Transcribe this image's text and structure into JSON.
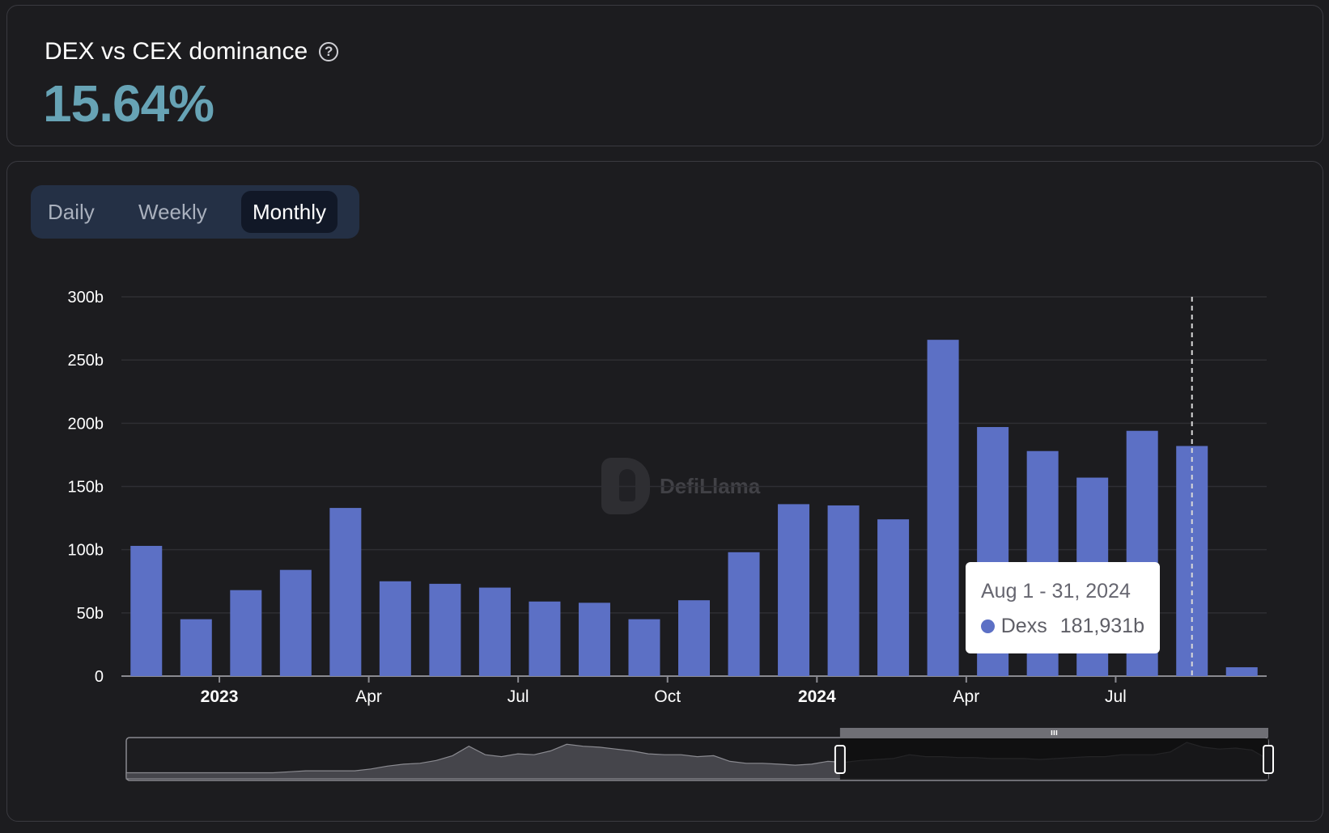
{
  "header": {
    "title": "DEX vs CEX dominance",
    "help_icon": "question-circle-icon",
    "value": "15.64%",
    "value_color": "#67a3b5"
  },
  "tabs": [
    {
      "label": "Daily",
      "active": false
    },
    {
      "label": "Weekly",
      "active": false
    },
    {
      "label": "Monthly",
      "active": true
    }
  ],
  "watermark": {
    "text": "DefiLlama",
    "icon": "defillama-logo-icon"
  },
  "tooltip": {
    "date": "Aug 1 - 31, 2024",
    "series_name": "Dexs",
    "value": "181,931b"
  },
  "colors": {
    "bar": "#5c70c5",
    "background": "#1c1c1f",
    "grid": "#2e2e33",
    "axis_text": "#ffffff",
    "value_accent": "#67a3b5"
  },
  "chart_data": {
    "type": "bar",
    "x": [
      "2022-11",
      "2022-12",
      "2023-01",
      "2023-02",
      "2023-03",
      "2023-04",
      "2023-05",
      "2023-06",
      "2023-07",
      "2023-08",
      "2023-09",
      "2023-10",
      "2023-11",
      "2023-12",
      "2024-01",
      "2024-02",
      "2024-03",
      "2024-04",
      "2024-05",
      "2024-06",
      "2024-07",
      "2024-08",
      "2024-09"
    ],
    "series": [
      {
        "name": "Dexs",
        "values": [
          103,
          45,
          68,
          84,
          133,
          75,
          73,
          70,
          59,
          58,
          45,
          60,
          98,
          136,
          135,
          124,
          266,
          197,
          178,
          157,
          194,
          182,
          7
        ]
      }
    ],
    "unit": "b",
    "ylim": [
      0,
      300
    ],
    "y_ticks": [
      "0",
      "50b",
      "100b",
      "150b",
      "200b",
      "250b",
      "300b"
    ],
    "x_ticks": [
      {
        "label": "2023",
        "bold": true
      },
      {
        "label": "Apr",
        "bold": false
      },
      {
        "label": "Jul",
        "bold": false
      },
      {
        "label": "Oct",
        "bold": false
      },
      {
        "label": "2024",
        "bold": true
      },
      {
        "label": "Apr",
        "bold": false
      },
      {
        "label": "Jul",
        "bold": false
      }
    ],
    "grid": true,
    "highlighted_bar": "2024-08",
    "brush": {
      "range": [
        0.625,
        1.0
      ],
      "overview_values": [
        3,
        3,
        3,
        3,
        3,
        3,
        3,
        3,
        3,
        3,
        4,
        5,
        5,
        5,
        5,
        7,
        10,
        12,
        13,
        16,
        21,
        31,
        22,
        20,
        23,
        22,
        26,
        33,
        31,
        30,
        28,
        26,
        23,
        22,
        22,
        20,
        21,
        15,
        13,
        13,
        12,
        11,
        12,
        15,
        14,
        16,
        17,
        18,
        22,
        20,
        20,
        19,
        19,
        18,
        18,
        18,
        17,
        18,
        19,
        20,
        20,
        22,
        22,
        22,
        25,
        35,
        30,
        28,
        29,
        27,
        17
      ],
      "handle_icon": "drag-grip-icon"
    }
  }
}
